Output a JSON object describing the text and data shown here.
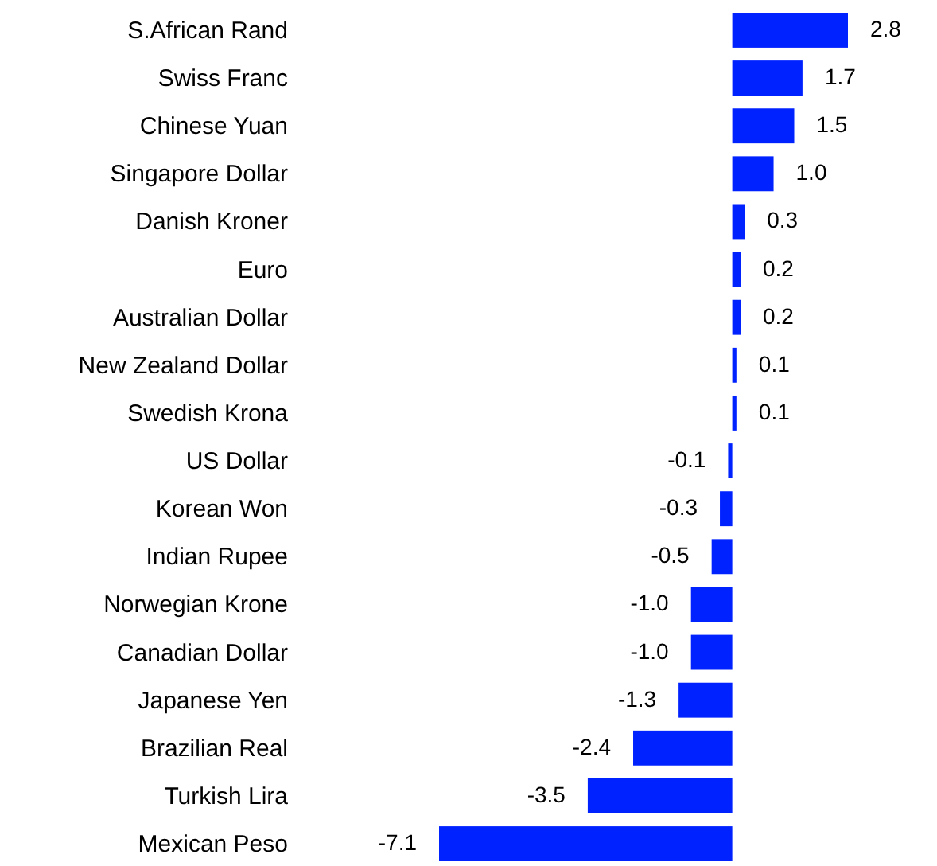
{
  "chart_data": {
    "type": "bar",
    "orientation": "horizontal",
    "color": "#0022ff",
    "categories": [
      "S.African Rand",
      "Swiss Franc",
      "Chinese Yuan",
      "Singapore Dollar",
      "Danish Kroner",
      "Euro",
      "Australian Dollar",
      "New Zealand Dollar",
      "Swedish Krona",
      "US Dollar",
      "Korean Won",
      "Indian Rupee",
      "Norwegian Krone",
      "Canadian Dollar",
      "Japanese Yen",
      "Brazilian Real",
      "Turkish Lira",
      "Mexican Peso"
    ],
    "values": [
      2.8,
      1.7,
      1.5,
      1.0,
      0.3,
      0.2,
      0.2,
      0.1,
      0.1,
      -0.1,
      -0.3,
      -0.5,
      -1.0,
      -1.0,
      -1.3,
      -2.4,
      -3.5,
      -7.1
    ],
    "value_labels": [
      "2.8",
      "1.7",
      "1.5",
      "1.0",
      "0.3",
      "0.2",
      "0.2",
      "0.1",
      "0.1",
      "-0.1",
      "-0.3",
      "-0.5",
      "-1.0",
      "-1.0",
      "-1.3",
      "-2.4",
      "-3.5",
      "-7.1"
    ]
  }
}
